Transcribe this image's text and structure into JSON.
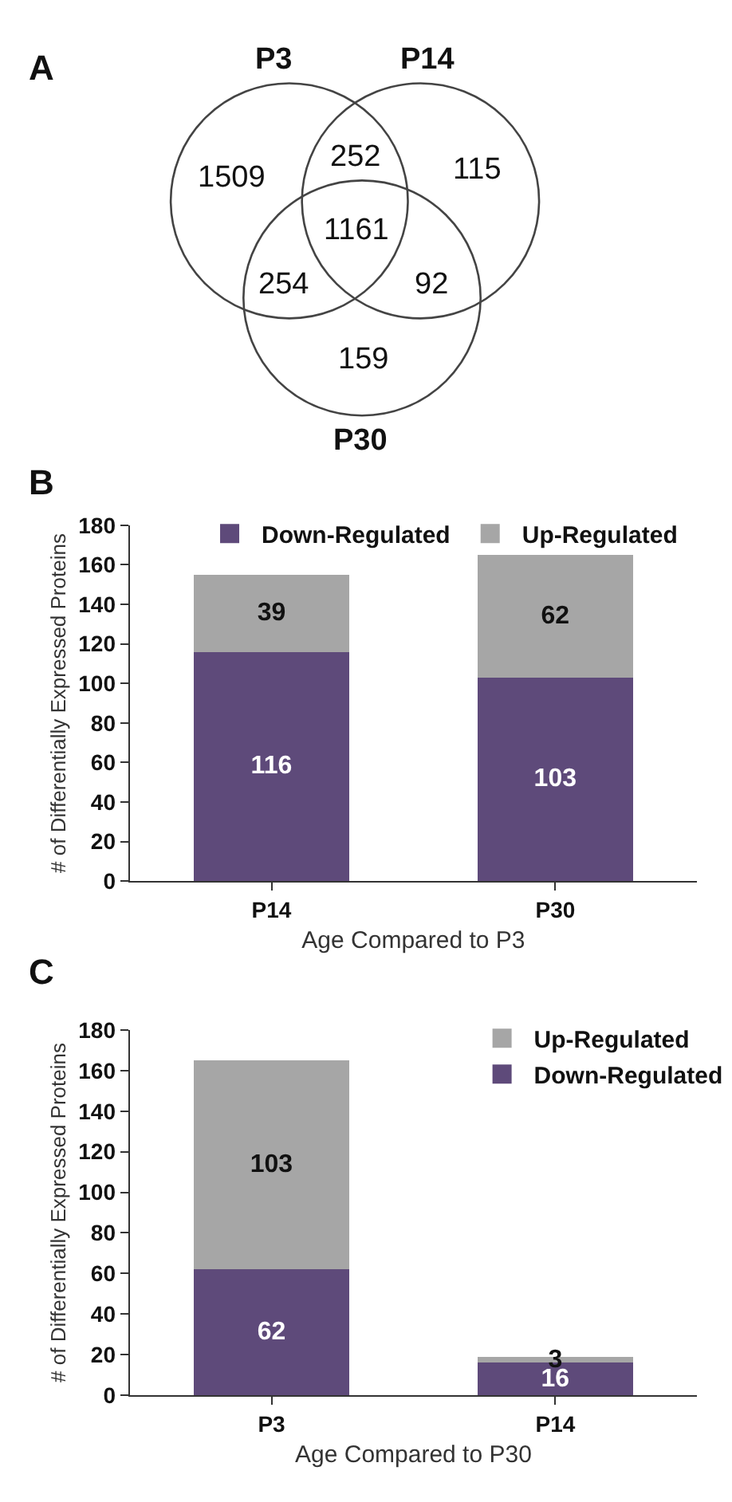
{
  "chart_data": [
    {
      "type": "other",
      "title": "A",
      "annotations": [
        "P3",
        "P14",
        "P30",
        "1509",
        "252",
        "115",
        "1161",
        "254",
        "92",
        "159"
      ]
    },
    {
      "type": "bar",
      "title": "B",
      "categories": [
        "P14",
        "P30"
      ],
      "stacked": true,
      "series": [
        {
          "name": "Down-Regulated",
          "color": "#5e4a7a",
          "values": [
            116,
            103
          ]
        },
        {
          "name": "Up-Regulated",
          "color": "#a6a6a6",
          "values": [
            39,
            62
          ]
        }
      ],
      "xlabel": "Age Compared to P3",
      "ylabel": "# of Differentially Expressed Proteins",
      "ylim": [
        0,
        180
      ],
      "yticks": [
        0,
        20,
        40,
        60,
        80,
        100,
        120,
        140,
        160,
        180
      ],
      "data_labels": true,
      "legend": "top"
    },
    {
      "type": "bar",
      "title": "C",
      "categories": [
        "P3",
        "P14"
      ],
      "stacked": true,
      "series": [
        {
          "name": "Down-Regulated",
          "color": "#5e4a7a",
          "values": [
            62,
            16
          ]
        },
        {
          "name": "Up-Regulated",
          "color": "#a6a6a6",
          "values": [
            103,
            3
          ]
        }
      ],
      "xlabel": "Age Compared to P30",
      "ylabel": "# of Differentially Expressed Proteins",
      "ylim": [
        0,
        180
      ],
      "yticks": [
        0,
        20,
        40,
        60,
        80,
        100,
        120,
        140,
        160,
        180
      ],
      "data_labels": true,
      "legend": "top right"
    }
  ]
}
